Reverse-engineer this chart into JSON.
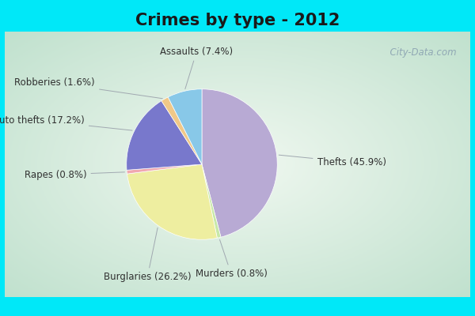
{
  "title": "Crimes by type - 2012",
  "title_fontsize": 15,
  "title_fontweight": "bold",
  "slices": [
    {
      "label": "Thefts",
      "pct": 45.9,
      "color": "#b8aad4"
    },
    {
      "label": "Murders",
      "pct": 0.8,
      "color": "#c8e8a8"
    },
    {
      "label": "Burglaries",
      "pct": 26.2,
      "color": "#eeeea0"
    },
    {
      "label": "Rapes",
      "pct": 0.8,
      "color": "#f0a8b0"
    },
    {
      "label": "Auto thefts",
      "pct": 17.2,
      "color": "#7878cc"
    },
    {
      "label": "Robberies",
      "pct": 1.6,
      "color": "#f0c888"
    },
    {
      "label": "Assaults",
      "pct": 7.4,
      "color": "#88c8e8"
    }
  ],
  "cyan_color": "#00e8f8",
  "bg_center": "#f0f8f0",
  "bg_edge": "#b8ddc8",
  "label_fontsize": 8.5,
  "label_color": "#303030",
  "watermark_text": "  City-Data.com",
  "watermark_color": "#90a8b4",
  "title_color": "#1a1a1a",
  "line_color": "#a0a8b0"
}
